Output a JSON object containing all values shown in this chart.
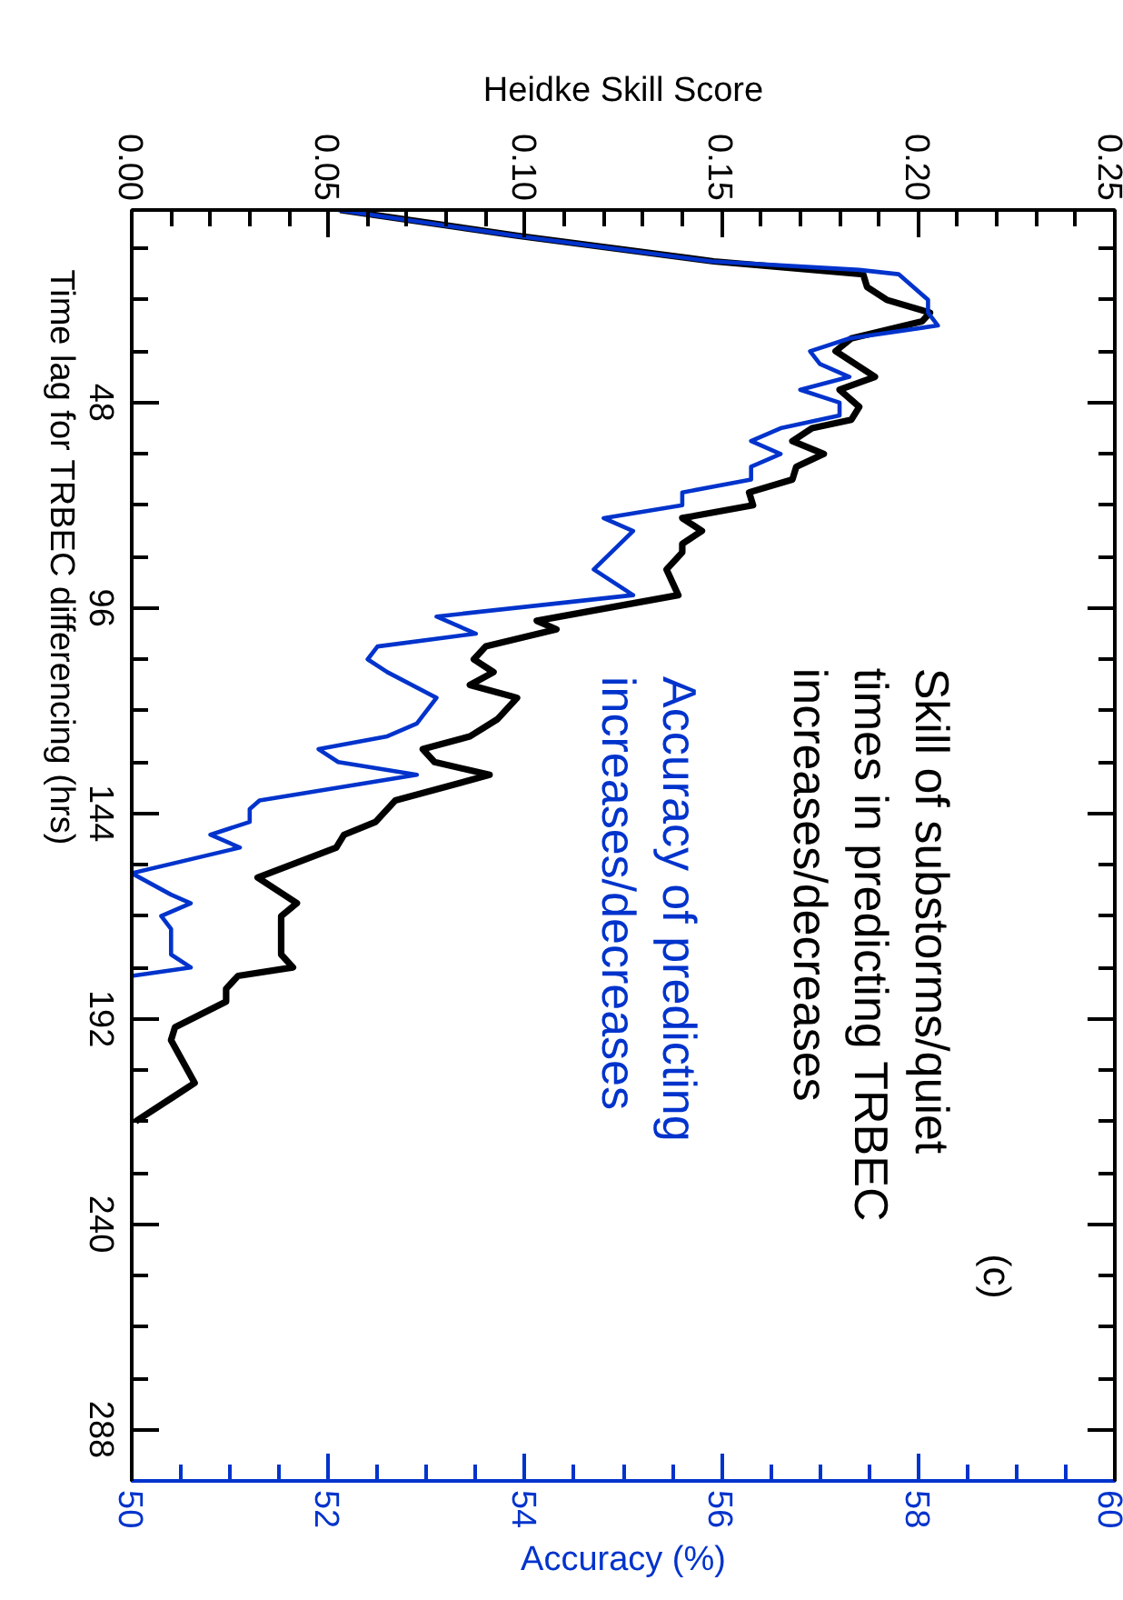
{
  "chart_data": {
    "type": "line",
    "ylabel": "Time lag for TRBEC differencing (hrs)",
    "x2label": "Heidke Skill Score",
    "xlabel": "Accuracy (%)",
    "ylim": [
      300,
      3
    ],
    "x2lim": [
      0,
      0.25
    ],
    "xlim": [
      50,
      60
    ],
    "yticks": [
      {
        "value": 12,
        "label": null
      },
      {
        "value": 24,
        "label": null
      },
      {
        "value": 36,
        "label": null
      },
      48,
      {
        "value": 60,
        "label": null
      },
      {
        "value": 72,
        "label": null
      },
      {
        "value": 84,
        "label": null
      },
      96,
      {
        "value": 108,
        "label": null
      },
      {
        "value": 120,
        "label": null
      },
      {
        "value": 132,
        "label": null
      },
      144,
      {
        "value": 156,
        "label": null
      },
      {
        "value": 168,
        "label": null
      },
      {
        "value": 180,
        "label": null
      },
      192,
      {
        "value": 204,
        "label": null
      },
      {
        "value": 216,
        "label": null
      },
      {
        "value": 228,
        "label": null
      },
      240,
      {
        "value": 252,
        "label": null
      },
      {
        "value": 264,
        "label": null
      },
      {
        "value": 276,
        "label": null
      },
      288
    ],
    "x2ticks": [
      {
        "value": 0,
        "label": "0.00"
      },
      {
        "value": 0.01,
        "label": null
      },
      {
        "value": 0.02,
        "label": null
      },
      {
        "value": 0.03,
        "label": null
      },
      {
        "value": 0.04,
        "label": null
      },
      0.05,
      {
        "value": 0.06,
        "label": null
      },
      {
        "value": 0.07,
        "label": null
      },
      {
        "value": 0.08,
        "label": null
      },
      {
        "value": 0.09,
        "label": null
      },
      {
        "value": 0.1,
        "label": "0.10"
      },
      {
        "value": 0.11,
        "label": null
      },
      {
        "value": 0.12,
        "label": null
      },
      {
        "value": 0.13,
        "label": null
      },
      {
        "value": 0.14,
        "label": null
      },
      0.15,
      {
        "value": 0.16,
        "label": null
      },
      {
        "value": 0.17,
        "label": null
      },
      {
        "value": 0.18,
        "label": null
      },
      {
        "value": 0.19,
        "label": null
      },
      {
        "value": 0.2,
        "label": "0.20"
      },
      {
        "value": 0.21,
        "label": null
      },
      {
        "value": 0.22,
        "label": null
      },
      {
        "value": 0.23,
        "label": null
      },
      {
        "value": 0.24,
        "label": null
      },
      0.25
    ],
    "xticks": [
      50,
      {
        "value": 50.5,
        "label": null
      },
      {
        "value": 51,
        "label": null
      },
      {
        "value": 51.5,
        "label": null
      },
      52,
      {
        "value": 52.5,
        "label": null
      },
      {
        "value": 53,
        "label": null
      },
      {
        "value": 53.5,
        "label": null
      },
      54,
      {
        "value": 54.5,
        "label": null
      },
      {
        "value": 55,
        "label": null
      },
      {
        "value": 55.5,
        "label": null
      },
      56,
      {
        "value": 56.5,
        "label": null
      },
      {
        "value": 57,
        "label": null
      },
      {
        "value": 57.5,
        "label": null
      },
      58,
      {
        "value": 58.5,
        "label": null
      },
      {
        "value": 59,
        "label": null
      },
      {
        "value": 59.5,
        "label": null
      },
      60
    ],
    "grid": false,
    "annotations": [
      "(c)"
    ],
    "series": [
      {
        "name": "Skill of substorms/quiet\ntimes in predicting TRBEC\nincreases/decreases",
        "color": "#000000",
        "axis": "x2",
        "values": [
          3,
          9,
          15,
          18,
          21,
          24,
          27,
          29,
          33,
          36,
          42,
          45,
          49,
          52,
          54,
          57,
          60,
          63,
          66,
          69,
          72,
          75,
          78,
          81,
          83,
          87,
          93,
          99,
          101,
          105,
          108,
          111,
          114,
          117,
          122,
          126,
          129,
          132,
          135,
          141,
          146,
          149,
          152,
          159,
          165,
          168,
          177,
          180,
          182,
          185,
          188,
          194,
          197,
          207,
          210,
          216
        ],
        "x": [
          0.053,
          0.098,
          0.148,
          0.186,
          0.187,
          0.192,
          0.203,
          0.201,
          0.183,
          0.179,
          0.189,
          0.18,
          0.185,
          0.183,
          0.173,
          0.168,
          0.176,
          0.169,
          0.168,
          0.157,
          0.158,
          0.14,
          0.145,
          0.14,
          0.14,
          0.136,
          0.139,
          0.103,
          0.108,
          0.09,
          0.087,
          0.092,
          0.086,
          0.098,
          0.093,
          0.086,
          0.074,
          0.077,
          0.091,
          0.067,
          0.062,
          0.054,
          0.052,
          0.032,
          0.042,
          0.038,
          0.038,
          0.041,
          0.027,
          0.024,
          0.024,
          0.011,
          0.01,
          0.016,
          0.011,
          0.001
        ]
      },
      {
        "name": "Accuracy of predicting\nincreases/decreases",
        "color": "#0033cc",
        "values": [
          3,
          9,
          15,
          17,
          18,
          24,
          27,
          30,
          33,
          36,
          39,
          42,
          45,
          48,
          51,
          54,
          57,
          60,
          63,
          66,
          69,
          72,
          75,
          78,
          87,
          93,
          98,
          102,
          105,
          108,
          111,
          117,
          123,
          126,
          129,
          132,
          135,
          141,
          143,
          146,
          149,
          152,
          158,
          163,
          165,
          168,
          171,
          177,
          180,
          182
        ],
        "x": [
          52.1,
          53.9,
          55.9,
          57.4,
          57.8,
          58.1,
          58.1,
          58.2,
          57.3,
          56.9,
          57.0,
          57.3,
          56.8,
          57.2,
          57.2,
          56.6,
          56.3,
          56.6,
          56.3,
          56.3,
          55.6,
          55.6,
          54.8,
          55.1,
          54.7,
          55.1,
          53.1,
          53.5,
          52.5,
          52.4,
          52.6,
          53.1,
          52.9,
          52.6,
          51.9,
          52.1,
          52.9,
          51.3,
          51.2,
          51.2,
          50.8,
          51.1,
          50.0,
          50.4,
          50.6,
          50.3,
          50.4,
          50.4,
          50.6,
          50.0
        ]
      }
    ]
  }
}
